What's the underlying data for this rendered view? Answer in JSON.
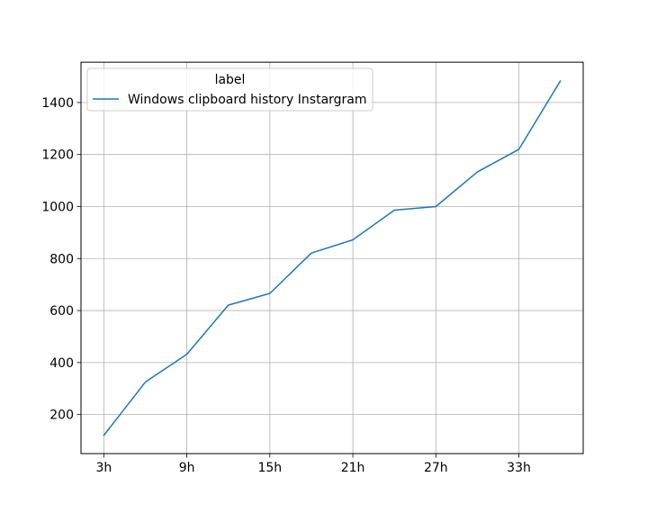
{
  "chart_data": {
    "type": "line",
    "title": "",
    "xlabel": "",
    "ylabel": "",
    "x": [
      3,
      6,
      9,
      12,
      15,
      18,
      21,
      24,
      27,
      30,
      33,
      36
    ],
    "xticks": [
      3,
      9,
      15,
      21,
      27,
      33
    ],
    "xtick_labels": [
      "3h",
      "9h",
      "15h",
      "21h",
      "27h",
      "33h"
    ],
    "xlim": [
      1.35,
      37.65
    ],
    "yticks": [
      200,
      400,
      600,
      800,
      1000,
      1200,
      1400
    ],
    "ytick_labels": [
      "200",
      "400",
      "600",
      "800",
      "1000",
      "1200",
      "1400"
    ],
    "ylim": [
      50,
      1555
    ],
    "grid": true,
    "legend": {
      "title": "label",
      "placement": "upper left"
    },
    "series": [
      {
        "name": "Windows clipboard history Instargram",
        "color": "#1f77b4",
        "values": [
          120,
          325,
          432,
          621,
          666,
          821,
          872,
          986,
          1000,
          1133,
          1220,
          1483
        ]
      }
    ]
  }
}
